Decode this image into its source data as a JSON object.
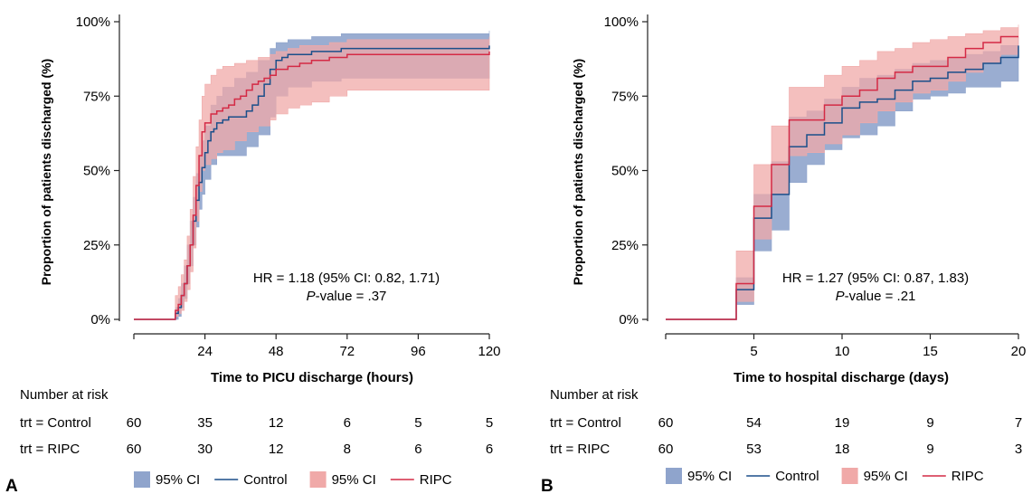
{
  "chart_data": [
    {
      "panel_label": "A",
      "type": "line",
      "step": true,
      "xlabel": "Time to PICU discharge (hours)",
      "ylabel": "Proportion of patients discharged (%)",
      "xlim": [
        0,
        120
      ],
      "ylim": [
        0,
        1
      ],
      "x_ticks": [
        24,
        48,
        72,
        96,
        120
      ],
      "y_ticks": [
        "0%",
        "25%",
        "50%",
        "75%",
        "100%"
      ],
      "y_tick_values": [
        0,
        0.25,
        0.5,
        0.75,
        1.0
      ],
      "annotation": {
        "hr": "HR = 1.18 (95% CI: 0.82, 1.71)",
        "p_italic": "P",
        "p_rest": "-value = .37"
      },
      "series": [
        {
          "name": "Control",
          "color": "#1b4f8a",
          "x": [
            0,
            13,
            14,
            15,
            16,
            17,
            18,
            19,
            20,
            21,
            22,
            23,
            24,
            25,
            26,
            27,
            28,
            30,
            32,
            34,
            36,
            38,
            40,
            42,
            44,
            46,
            48,
            50,
            52,
            56,
            60,
            70,
            120
          ],
          "y": [
            0,
            0,
            0.02,
            0.04,
            0.08,
            0.12,
            0.18,
            0.25,
            0.33,
            0.4,
            0.46,
            0.51,
            0.56,
            0.6,
            0.63,
            0.64,
            0.66,
            0.67,
            0.68,
            0.68,
            0.68,
            0.7,
            0.72,
            0.75,
            0.79,
            0.84,
            0.87,
            0.88,
            0.89,
            0.89,
            0.9,
            0.91,
            0.92
          ]
        },
        {
          "name": "RIPC",
          "color": "#d42a45",
          "x": [
            0,
            13,
            14,
            15,
            16,
            17,
            18,
            19,
            20,
            21,
            22,
            23,
            24,
            26,
            28,
            30,
            32,
            34,
            36,
            38,
            40,
            42,
            44,
            46,
            48,
            52,
            56,
            60,
            66,
            72,
            120
          ],
          "y": [
            0,
            0,
            0.03,
            0.05,
            0.08,
            0.12,
            0.18,
            0.25,
            0.35,
            0.45,
            0.55,
            0.63,
            0.66,
            0.69,
            0.7,
            0.71,
            0.72,
            0.74,
            0.75,
            0.77,
            0.79,
            0.8,
            0.81,
            0.82,
            0.84,
            0.85,
            0.86,
            0.87,
            0.88,
            0.89,
            0.9
          ]
        }
      ],
      "bands": [
        {
          "name": "95% CI",
          "series": "Control",
          "color": "#8fa4cc",
          "x": [
            0,
            13,
            14,
            15,
            16,
            17,
            18,
            19,
            20,
            21,
            22,
            23,
            24,
            26,
            28,
            30,
            34,
            38,
            42,
            46,
            48,
            52,
            60,
            70,
            120
          ],
          "lo": [
            0,
            0,
            0,
            0.01,
            0.04,
            0.07,
            0.12,
            0.18,
            0.25,
            0.31,
            0.37,
            0.42,
            0.47,
            0.52,
            0.55,
            0.55,
            0.55,
            0.58,
            0.62,
            0.68,
            0.75,
            0.78,
            0.8,
            0.81,
            0.82
          ],
          "hi": [
            0,
            0,
            0.04,
            0.07,
            0.12,
            0.18,
            0.25,
            0.33,
            0.41,
            0.49,
            0.55,
            0.6,
            0.65,
            0.72,
            0.75,
            0.78,
            0.81,
            0.83,
            0.87,
            0.91,
            0.93,
            0.94,
            0.95,
            0.96,
            0.97
          ]
        },
        {
          "name": "95% CI",
          "series": "RIPC",
          "color": "#f0a9a8",
          "x": [
            0,
            13,
            14,
            15,
            16,
            17,
            18,
            19,
            20,
            21,
            22,
            23,
            24,
            26,
            28,
            30,
            34,
            38,
            42,
            46,
            48,
            52,
            56,
            60,
            66,
            72,
            120
          ],
          "lo": [
            0,
            0,
            0.01,
            0.02,
            0.03,
            0.06,
            0.1,
            0.16,
            0.24,
            0.33,
            0.43,
            0.5,
            0.52,
            0.54,
            0.56,
            0.57,
            0.6,
            0.63,
            0.65,
            0.67,
            0.69,
            0.71,
            0.72,
            0.73,
            0.75,
            0.77,
            0.81
          ],
          "hi": [
            0,
            0,
            0.08,
            0.11,
            0.15,
            0.2,
            0.28,
            0.37,
            0.48,
            0.58,
            0.67,
            0.75,
            0.79,
            0.82,
            0.84,
            0.85,
            0.86,
            0.87,
            0.88,
            0.89,
            0.9,
            0.91,
            0.92,
            0.92,
            0.93,
            0.94,
            0.95
          ]
        }
      ],
      "risk_table": {
        "title": "Number at risk",
        "x": [
          0,
          24,
          48,
          72,
          96,
          120
        ],
        "rows": [
          {
            "label": "trt = Control",
            "values": [
              "60",
              "35",
              "12",
              "6",
              "5",
              "5"
            ]
          },
          {
            "label": "trt = RIPC",
            "values": [
              "60",
              "30",
              "12",
              "8",
              "6",
              "6"
            ]
          }
        ]
      },
      "legend": [
        "95% CI",
        "Control",
        "95% CI",
        "RIPC"
      ],
      "legend_position": "bottom"
    },
    {
      "panel_label": "B",
      "type": "line",
      "step": true,
      "xlabel": "Time to hospital discharge (days)",
      "ylabel": "Proportion of patients discharged (%)",
      "xlim": [
        0,
        20
      ],
      "ylim": [
        0,
        1
      ],
      "x_ticks": [
        5,
        10,
        15,
        20
      ],
      "y_ticks": [
        "0%",
        "25%",
        "50%",
        "75%",
        "100%"
      ],
      "y_tick_values": [
        0,
        0.25,
        0.5,
        0.75,
        1.0
      ],
      "annotation": {
        "hr": "HR = 1.27 (95% CI: 0.87, 1.83)",
        "p_italic": "P",
        "p_rest": "-value = .21"
      },
      "series": [
        {
          "name": "Control",
          "color": "#1b4f8a",
          "x": [
            0,
            4,
            5,
            6,
            7,
            8,
            9,
            10,
            11,
            12,
            13,
            14,
            15,
            16,
            17,
            18,
            19,
            20
          ],
          "y": [
            0,
            0.1,
            0.34,
            0.42,
            0.58,
            0.62,
            0.66,
            0.71,
            0.73,
            0.74,
            0.77,
            0.8,
            0.81,
            0.83,
            0.84,
            0.86,
            0.88,
            0.92
          ]
        },
        {
          "name": "RIPC",
          "color": "#d42a45",
          "x": [
            0,
            4,
            5,
            6,
            7,
            8,
            9,
            10,
            11,
            12,
            13,
            14,
            15,
            16,
            17,
            18,
            19,
            20
          ],
          "y": [
            0,
            0.12,
            0.38,
            0.52,
            0.67,
            0.67,
            0.72,
            0.75,
            0.77,
            0.81,
            0.83,
            0.85,
            0.85,
            0.88,
            0.91,
            0.93,
            0.95,
            0.95
          ]
        }
      ],
      "bands": [
        {
          "name": "95% CI",
          "series": "Control",
          "color": "#8fa4cc",
          "x": [
            0,
            4,
            5,
            6,
            7,
            8,
            9,
            10,
            11,
            12,
            13,
            14,
            15,
            16,
            17,
            18,
            19,
            20
          ],
          "lo": [
            0,
            0.05,
            0.23,
            0.3,
            0.46,
            0.52,
            0.57,
            0.61,
            0.62,
            0.65,
            0.7,
            0.74,
            0.75,
            0.76,
            0.78,
            0.78,
            0.8,
            0.8
          ],
          "hi": [
            0,
            0.14,
            0.42,
            0.53,
            0.68,
            0.7,
            0.74,
            0.78,
            0.81,
            0.82,
            0.84,
            0.86,
            0.87,
            0.88,
            0.89,
            0.9,
            0.92,
            0.95
          ]
        },
        {
          "name": "95% CI",
          "series": "RIPC",
          "color": "#f0a9a8",
          "x": [
            0,
            4,
            5,
            6,
            7,
            8,
            9,
            10,
            11,
            12,
            13,
            14,
            15,
            16,
            17,
            18,
            19,
            20
          ],
          "lo": [
            0,
            0.06,
            0.27,
            0.42,
            0.55,
            0.56,
            0.59,
            0.62,
            0.66,
            0.7,
            0.73,
            0.76,
            0.77,
            0.8,
            0.83,
            0.86,
            0.89,
            0.9
          ],
          "hi": [
            0,
            0.23,
            0.52,
            0.65,
            0.78,
            0.78,
            0.82,
            0.85,
            0.87,
            0.9,
            0.91,
            0.93,
            0.94,
            0.95,
            0.96,
            0.97,
            0.98,
            0.99
          ]
        }
      ],
      "risk_table": {
        "title": "Number at risk",
        "x": [
          0,
          5,
          10,
          15,
          20
        ],
        "rows": [
          {
            "label": "trt = Control",
            "values": [
              "60",
              "54",
              "19",
              "9",
              "7"
            ]
          },
          {
            "label": "trt = RIPC",
            "values": [
              "60",
              "53",
              "18",
              "9",
              "3"
            ]
          }
        ]
      },
      "legend": [
        "95% CI",
        "Control",
        "95% CI",
        "RIPC"
      ],
      "legend_position": "bottom"
    }
  ]
}
